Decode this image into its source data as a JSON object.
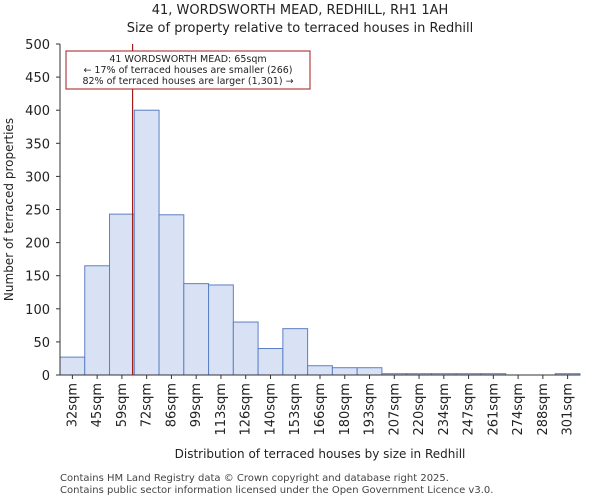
{
  "title_line1": "41, WORDSWORTH MEAD, REDHILL, RH1 1AH",
  "title_line2": "Size of property relative to terraced houses in Redhill",
  "footer_line1": "Contains HM Land Registry data © Crown copyright and database right 2025.",
  "footer_line2": "Contains public sector information licensed under the Open Government Licence v3.0.",
  "chart_data": {
    "type": "bar",
    "title": "Size of property relative to terraced houses in Redhill",
    "xlabel": "Distribution of terraced houses by size in Redhill",
    "ylabel": "Number of terraced properties",
    "ylim": [
      0,
      500
    ],
    "yticks": [
      0,
      50,
      100,
      150,
      200,
      250,
      300,
      350,
      400,
      450,
      500
    ],
    "bin_edges": [
      25.5,
      38.5,
      52,
      65.5,
      79,
      92.5,
      106,
      119.5,
      133,
      146.5,
      160,
      173.5,
      187,
      200.5,
      214,
      227.5,
      241,
      254.5,
      268,
      281.5,
      295,
      308.5
    ],
    "categories": [
      "32sqm",
      "45sqm",
      "59sqm",
      "72sqm",
      "86sqm",
      "99sqm",
      "113sqm",
      "126sqm",
      "140sqm",
      "153sqm",
      "166sqm",
      "180sqm",
      "193sqm",
      "207sqm",
      "220sqm",
      "234sqm",
      "247sqm",
      "261sqm",
      "274sqm",
      "288sqm",
      "301sqm"
    ],
    "values": [
      27,
      165,
      243,
      400,
      242,
      138,
      136,
      80,
      40,
      70,
      14,
      11,
      11,
      2,
      2,
      2,
      2,
      2,
      0,
      0,
      2
    ],
    "bar_color": "#d9e2f5",
    "bar_edge_color": "#5b7fc4",
    "property_marker": {
      "value": 65,
      "color": "#a31b1b",
      "annotation": [
        "41 WORDSWORTH MEAD: 65sqm",
        "← 17% of terraced houses are smaller (266)",
        "82% of terraced houses are larger (1,301) →"
      ]
    }
  }
}
